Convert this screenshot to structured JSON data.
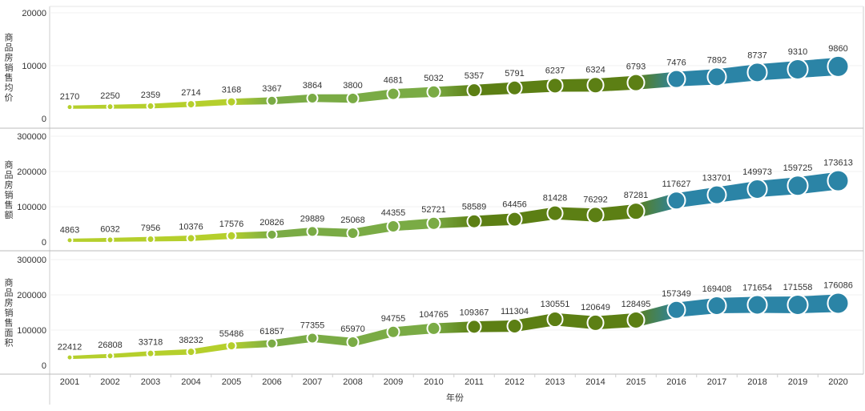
{
  "chart_data": {
    "type": "line",
    "x": [
      "2001",
      "2002",
      "2003",
      "2004",
      "2005",
      "2006",
      "2007",
      "2008",
      "2009",
      "2010",
      "2011",
      "2012",
      "2013",
      "2014",
      "2015",
      "2016",
      "2017",
      "2018",
      "2019",
      "2020"
    ],
    "xlabel": "年份",
    "colors": {
      "light": "#b5cf2c",
      "mid": "#7aab45",
      "dark": "#5c7f14",
      "blue": "#2b84a6"
    },
    "panels": [
      {
        "ylabel": "商品房销售均价",
        "yticks": [
          "20000",
          "10000",
          "0"
        ],
        "ylim": [
          0,
          20000
        ],
        "values": [
          2170,
          2250,
          2359,
          2714,
          3168,
          3367,
          3864,
          3800,
          4681,
          5032,
          5357,
          5791,
          6237,
          6324,
          6793,
          7476,
          7892,
          8737,
          9310,
          9860
        ]
      },
      {
        "ylabel": "商品房销售额",
        "yticks": [
          "300000",
          "200000",
          "100000",
          "0"
        ],
        "ylim": [
          0,
          300000
        ],
        "values": [
          4863,
          6032,
          7956,
          10376,
          17576,
          20826,
          29889,
          25068,
          44355,
          52721,
          58589,
          64456,
          81428,
          76292,
          87281,
          117627,
          133701,
          149973,
          159725,
          173613
        ]
      },
      {
        "ylabel": "商品房销售面积",
        "yticks": [
          "300000",
          "200000",
          "100000",
          "0"
        ],
        "ylim": [
          0,
          300000
        ],
        "values": [
          22412,
          26808,
          33718,
          38232,
          55486,
          61857,
          77355,
          65970,
          94755,
          104765,
          109367,
          111304,
          130551,
          120649,
          128495,
          157349,
          169408,
          171654,
          171558,
          176086
        ]
      }
    ]
  }
}
